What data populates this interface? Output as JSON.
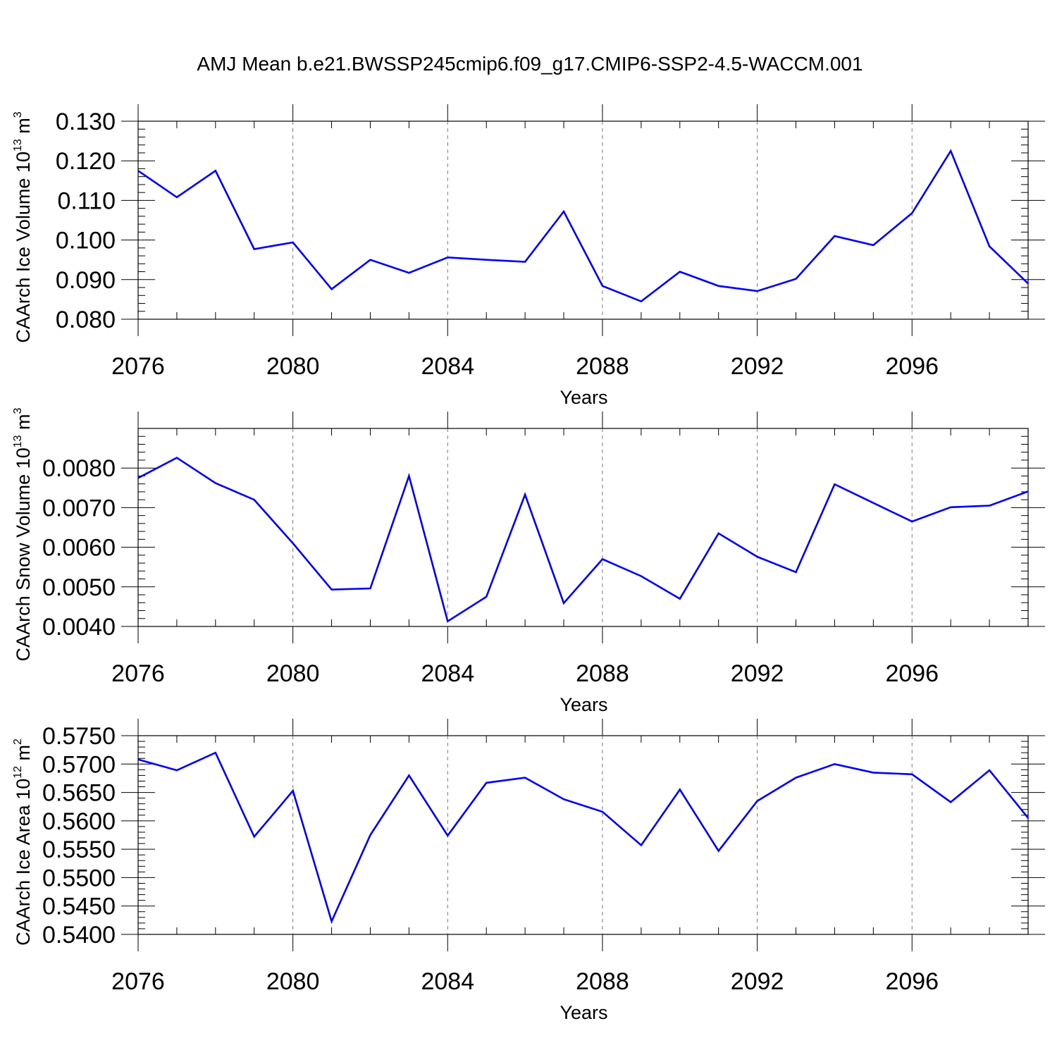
{
  "title": "AMJ Mean b.e21.BWSSP245cmip6.f09_g17.CMIP6-SSP2-4.5-WACCM.001",
  "colors": {
    "line": "#0000ff",
    "axis": "#000000",
    "grid": "#000000"
  },
  "chart_data": [
    {
      "type": "line",
      "xlabel": "Years",
      "ylabel": {
        "text": "CAArch Ice Volume 10",
        "exponent": "13",
        "unit": "m",
        "unit_exponent": "3"
      },
      "xlim": [
        2076,
        2099
      ],
      "ylim": [
        0.08,
        0.13
      ],
      "grid": "x-dashed",
      "xticks": [
        "2076",
        "2080",
        "2084",
        "2088",
        "2092",
        "2096"
      ],
      "yticks": [
        "0.080",
        "0.090",
        "0.100",
        "0.110",
        "0.120",
        "0.130"
      ],
      "x": [
        2076,
        2077,
        2078,
        2079,
        2080,
        2081,
        2082,
        2083,
        2084,
        2085,
        2086,
        2087,
        2088,
        2089,
        2090,
        2091,
        2092,
        2093,
        2094,
        2095,
        2096,
        2097,
        2098,
        2099
      ],
      "series": [
        {
          "values": [
            0.1175,
            0.1108,
            0.1175,
            0.0977,
            0.0994,
            0.0876,
            0.095,
            0.0917,
            0.0956,
            0.095,
            0.0945,
            0.1072,
            0.0884,
            0.0845,
            0.092,
            0.0884,
            0.0871,
            0.0902,
            0.101,
            0.0987,
            0.1068,
            0.1225,
            0.0984,
            0.089
          ]
        }
      ]
    },
    {
      "type": "line",
      "xlabel": "Years",
      "ylabel": {
        "text": "CAArch Snow Volume 10",
        "exponent": "13",
        "unit": "m",
        "unit_exponent": "3"
      },
      "xlim": [
        2076,
        2099
      ],
      "ylim": [
        0.004,
        0.009
      ],
      "grid": "x-dashed",
      "xticks": [
        "2076",
        "2080",
        "2084",
        "2088",
        "2092",
        "2096"
      ],
      "yticks": [
        "0.0040",
        "0.0050",
        "0.0060",
        "0.0070",
        "0.0080"
      ],
      "x": [
        2076,
        2077,
        2078,
        2079,
        2080,
        2081,
        2082,
        2083,
        2084,
        2085,
        2086,
        2087,
        2088,
        2089,
        2090,
        2091,
        2092,
        2093,
        2094,
        2095,
        2096,
        2097,
        2098,
        2099
      ],
      "series": [
        {
          "values": [
            0.00775,
            0.00826,
            0.00762,
            0.0072,
            0.0061,
            0.00493,
            0.00496,
            0.0078,
            0.00413,
            0.00475,
            0.00733,
            0.00459,
            0.0057,
            0.00527,
            0.0047,
            0.00635,
            0.00576,
            0.00537,
            0.00759,
            0.00712,
            0.00665,
            0.00701,
            0.00705,
            0.00741
          ]
        }
      ]
    },
    {
      "type": "line",
      "xlabel": "Years",
      "ylabel": {
        "text": "CAArch Ice Area 10",
        "exponent": "12",
        "unit": "m",
        "unit_exponent": "2"
      },
      "xlim": [
        2076,
        2099
      ],
      "ylim": [
        0.54,
        0.575
      ],
      "grid": "x-dashed",
      "xticks": [
        "2076",
        "2080",
        "2084",
        "2088",
        "2092",
        "2096"
      ],
      "yticks": [
        "0.5400",
        "0.5450",
        "0.5500",
        "0.5550",
        "0.5600",
        "0.5650",
        "0.5700",
        "0.5750"
      ],
      "x": [
        2076,
        2077,
        2078,
        2079,
        2080,
        2081,
        2082,
        2083,
        2084,
        2085,
        2086,
        2087,
        2088,
        2089,
        2090,
        2091,
        2092,
        2093,
        2094,
        2095,
        2096,
        2097,
        2098,
        2099
      ],
      "series": [
        {
          "values": [
            0.5708,
            0.5689,
            0.572,
            0.5572,
            0.5653,
            0.5423,
            0.5575,
            0.568,
            0.5574,
            0.5667,
            0.5676,
            0.5638,
            0.5616,
            0.5557,
            0.5655,
            0.5547,
            0.5635,
            0.5676,
            0.57,
            0.5685,
            0.5682,
            0.5633,
            0.5689,
            0.5605
          ]
        }
      ]
    }
  ]
}
